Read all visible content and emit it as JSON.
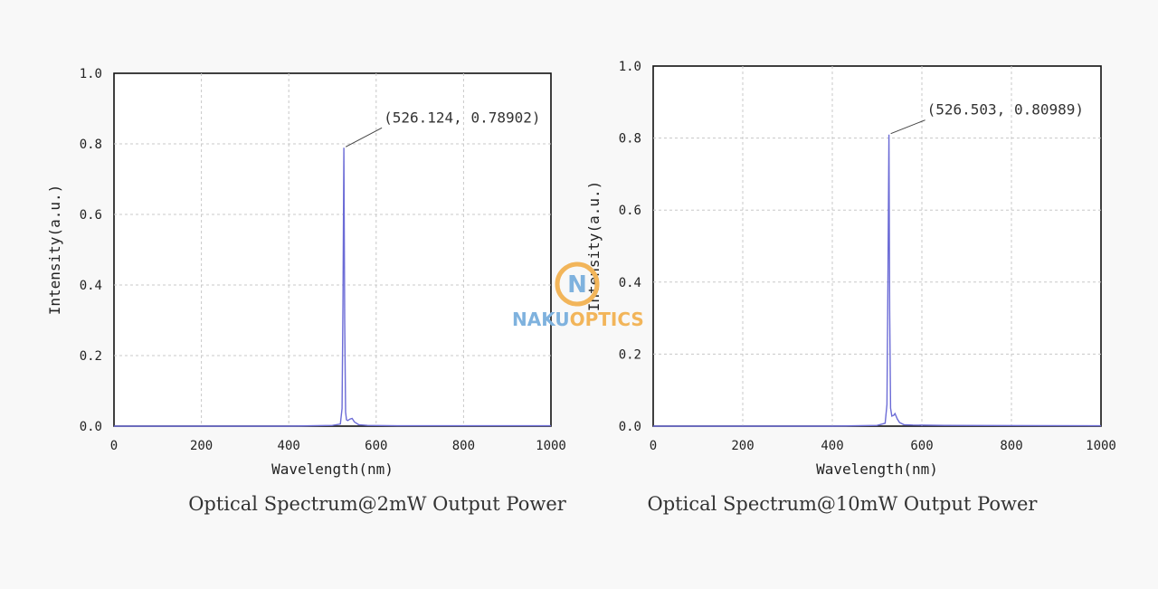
{
  "watermark": {
    "logo_letter": "N",
    "text_a": "NAKU",
    "text_b": "OPTICS",
    "color_a": "#7fb2de",
    "color_b": "#f2b55a"
  },
  "series_color": "#6b6bd6",
  "chart_data": [
    {
      "type": "line",
      "title": "",
      "caption": "Optical Spectrum@2mW Output Power",
      "xlabel": "Wavelength(nm)",
      "ylabel": "Intensity(a.u.)",
      "xlim": [
        0,
        1000
      ],
      "ylim": [
        0,
        1.0
      ],
      "xticks": [
        0,
        200,
        400,
        600,
        800,
        1000
      ],
      "xtick_labels": [
        "0",
        "200",
        "400",
        "600",
        "800",
        "1000"
      ],
      "yticks": [
        0,
        0.2,
        0.4,
        0.6,
        0.8,
        1.0
      ],
      "ytick_labels": [
        "0.0",
        "0.2",
        "0.4",
        "0.6",
        "0.8",
        "1.0"
      ],
      "grid": true,
      "series": [
        {
          "name": "spectrum",
          "x": [
            0,
            400,
            500,
            518,
            522,
            524,
            526.124,
            528,
            530,
            532,
            535,
            540,
            545,
            550,
            560,
            580,
            650,
            1000
          ],
          "y": [
            0.0,
            0.0,
            0.002,
            0.006,
            0.05,
            0.35,
            0.78902,
            0.3,
            0.04,
            0.018,
            0.016,
            0.02,
            0.022,
            0.012,
            0.004,
            0.002,
            0.001,
            0.001
          ]
        }
      ],
      "annotation": {
        "text": "(526.124,  0.78902)",
        "x": 526.124,
        "y": 0.78902
      }
    },
    {
      "type": "line",
      "title": "",
      "caption": "Optical Spectrum@10mW Output Power",
      "xlabel": "Wavelength(nm)",
      "ylabel": "Intensity(a.u.)",
      "xlim": [
        0,
        1000
      ],
      "ylim": [
        0,
        1.0
      ],
      "xticks": [
        0,
        200,
        400,
        600,
        800,
        1000
      ],
      "xtick_labels": [
        "0",
        "200",
        "400",
        "600",
        "800",
        "1000"
      ],
      "yticks": [
        0,
        0.2,
        0.4,
        0.6,
        0.8,
        1.0
      ],
      "ytick_labels": [
        "0.0",
        "0.2",
        "0.4",
        "0.6",
        "0.8",
        "1.0"
      ],
      "grid": true,
      "series": [
        {
          "name": "spectrum",
          "x": [
            0,
            400,
            500,
            518,
            522,
            524,
            526.503,
            528,
            530,
            533,
            537,
            540,
            545,
            550,
            560,
            580,
            650,
            1000
          ],
          "y": [
            0.0,
            0.0,
            0.002,
            0.008,
            0.06,
            0.38,
            0.80989,
            0.32,
            0.05,
            0.028,
            0.03,
            0.035,
            0.02,
            0.01,
            0.004,
            0.003,
            0.002,
            0.001
          ]
        }
      ],
      "annotation": {
        "text": "(526.503,  0.80989)",
        "x": 526.503,
        "y": 0.80989
      }
    }
  ]
}
